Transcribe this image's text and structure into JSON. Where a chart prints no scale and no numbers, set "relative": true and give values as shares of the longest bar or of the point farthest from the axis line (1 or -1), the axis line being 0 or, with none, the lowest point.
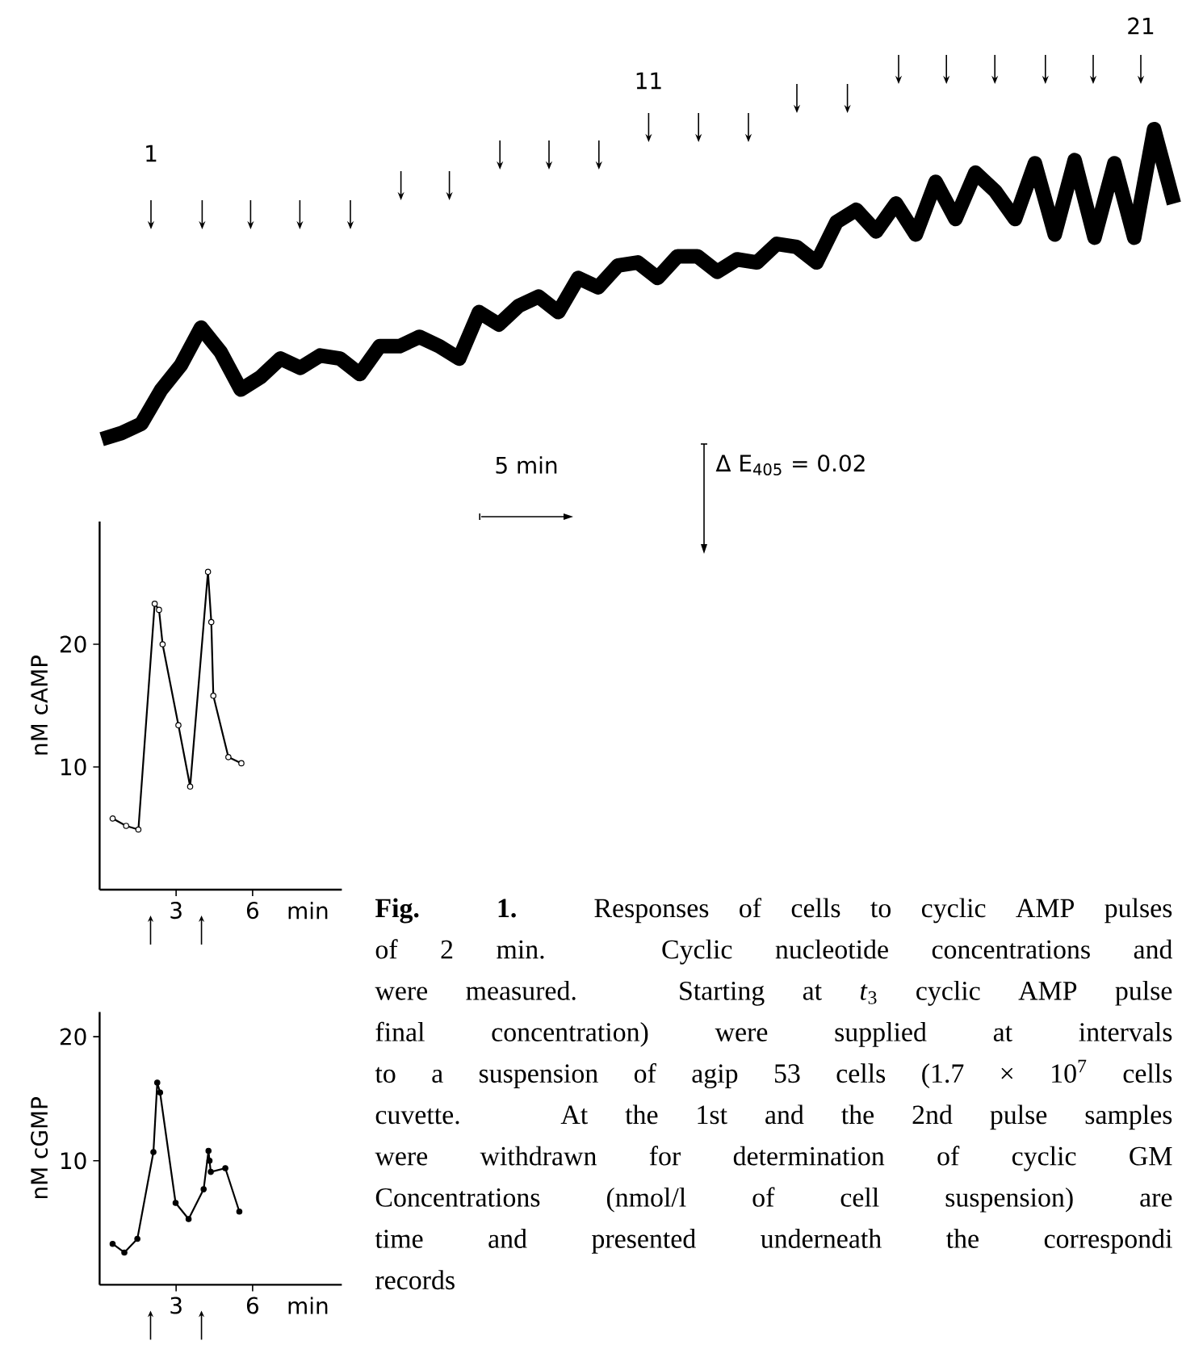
{
  "chart_data": [
    {
      "type": "line",
      "relative": true,
      "categories": [
        null,
        null,
        null,
        null,
        null,
        null,
        null,
        null,
        null,
        null,
        null,
        null,
        null,
        null,
        null,
        null,
        null,
        null,
        null,
        null,
        null,
        null,
        null,
        null,
        null,
        null,
        null,
        null,
        null,
        null,
        null,
        null,
        null,
        null,
        null,
        null,
        null,
        null,
        null,
        null,
        null,
        null,
        null,
        null,
        null,
        null,
        null,
        null,
        null,
        null,
        null,
        null,
        null,
        null,
        null
      ],
      "series": [
        {
          "color": "#000000",
          "values": [
            0.0,
            0.02,
            0.05,
            0.16,
            0.24,
            0.36,
            0.28,
            0.16,
            0.2,
            0.26,
            0.23,
            0.27,
            0.26,
            0.21,
            0.3,
            0.3,
            0.33,
            0.3,
            0.26,
            0.41,
            0.37,
            0.43,
            0.46,
            0.41,
            0.52,
            0.49,
            0.56,
            0.57,
            0.52,
            0.59,
            0.59,
            0.54,
            0.58,
            0.57,
            0.63,
            0.62,
            0.57,
            0.7,
            0.74,
            0.67,
            0.76,
            0.66,
            0.83,
            0.71,
            0.86,
            0.8,
            0.71,
            0.89,
            0.66,
            0.9,
            0.65,
            0.89,
            0.65,
            1.0,
            0.76
          ]
        }
      ],
      "annotations": [
        "1",
        "11",
        "21",
        "5 min",
        "Δ E$_{405}$ = 0.02",
        "**Fig. 1.** Responses of cells to cyclic AMP pulses",
        "of 2 min. Cyclic nucleotide concentrations and",
        "were measured. Starting at *t*$_{3}$ cyclic AMP pulse",
        "final concentration) were supplied at intervals",
        "to a suspension of agip 53 cells (1.7 × 10$^{7}$ cells",
        "cuvette. At the 1st and the 2nd pulse samples",
        "were withdrawn for determination of cyclic GM",
        "Concentrations (nmol/l of cell suspension) are",
        "time and presented underneath the correspondi",
        "records"
      ]
    },
    {
      "type": "line",
      "xlabel": "min",
      "ylabel": "nM cAMP",
      "xlim": [
        0,
        9.5
      ],
      "ylim": [
        0,
        30
      ],
      "xticks": [
        3,
        6
      ],
      "yticks": [
        10,
        20
      ],
      "marker": "circle",
      "grid": false,
      "series": [
        {
          "color": "#000000",
          "x": [
            0.51,
            1.04,
            1.52,
            2.16,
            2.33,
            2.47,
            3.09,
            3.55,
            4.25,
            4.38,
            4.46,
            5.05,
            5.56
          ],
          "values": [
            5.8,
            5.2,
            4.9,
            23.3,
            22.8,
            20.0,
            13.4,
            8.4,
            25.9,
            21.8,
            15.8,
            10.8,
            10.3
          ]
        }
      ]
    },
    {
      "type": "line",
      "xlabel": "min",
      "ylabel": "nM cGMP",
      "xlim": [
        0,
        9.5
      ],
      "ylim": [
        0,
        22
      ],
      "xticks": [
        3,
        6
      ],
      "yticks": [
        10,
        20
      ],
      "marker": "circle",
      "grid": false,
      "series": [
        {
          "color": "#000000",
          "x": [
            0.51,
            0.97,
            1.48,
            2.11,
            2.26,
            2.37,
            2.98,
            3.49,
            4.08,
            4.27,
            4.31,
            4.36,
            4.93,
            5.48
          ],
          "values": [
            3.3,
            2.6,
            3.7,
            10.7,
            16.3,
            15.5,
            6.6,
            5.3,
            7.7,
            10.8,
            10.0,
            9.1,
            9.4,
            5.9
          ]
        }
      ]
    }
  ]
}
